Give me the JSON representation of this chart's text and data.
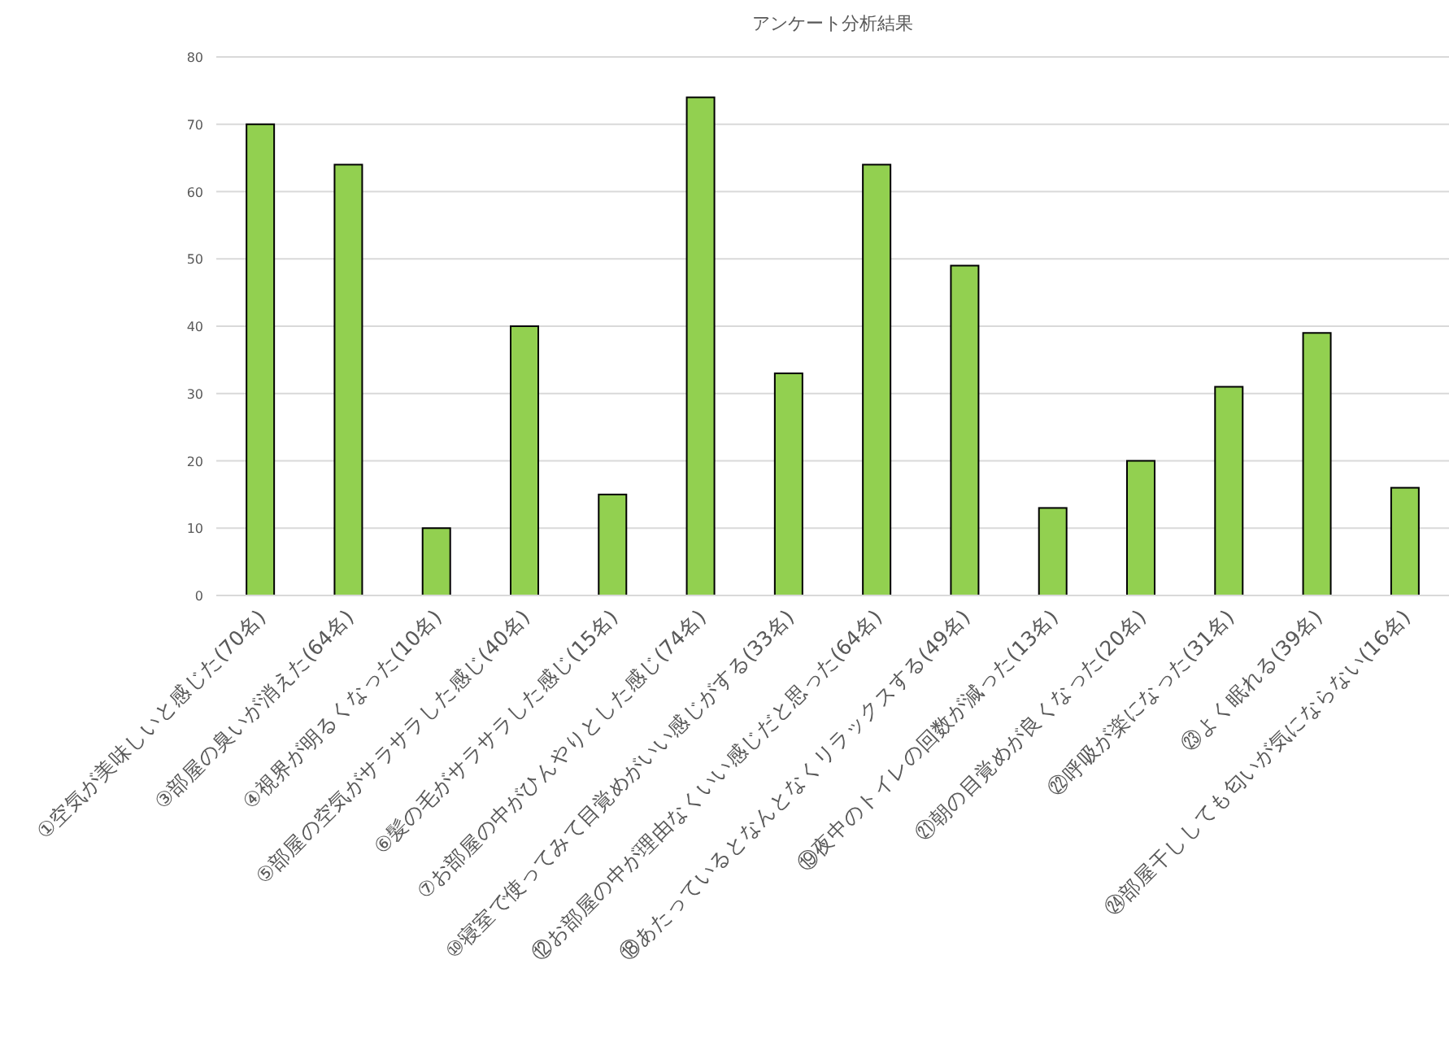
{
  "chart_data": {
    "type": "bar",
    "title": "アンケート分析結果",
    "categories": [
      "①空気が美味しいと感じた(70名)",
      "③部屋の臭いが消えた(64名)",
      "④視界が明るくなった(10名)",
      "⑤部屋の空気がサラサラした感じ(40名)",
      "⑥髪の毛がサラサラした感じ(15名)",
      "⑦お部屋の中がひんやりとした感じ(74名)",
      "⑩寝室で使ってみて目覚めがいい感じがする(33名)",
      "⑫お部屋の中が理由なくいい感じだと思った(64名)",
      "⑱あたっているとなんとなくリラックスする(49名)",
      "⑲夜中のトイレの回数が減った(13名)",
      "㉑朝の目覚めが良くなった(20名)",
      "㉒呼吸が楽になった(31名)",
      "㉓よく眠れる(39名)",
      "㉔部屋干ししても匂いが気にならない(16名)"
    ],
    "series": [
      {
        "color": "#92d050",
        "values": [
          70,
          64,
          10,
          40,
          15,
          74,
          33,
          64,
          49,
          13,
          20,
          31,
          39,
          16
        ]
      }
    ],
    "ylim": [
      0,
      80
    ],
    "yticks": [
      0,
      10,
      20,
      30,
      40,
      50,
      60,
      70,
      80
    ],
    "grid": "y"
  }
}
